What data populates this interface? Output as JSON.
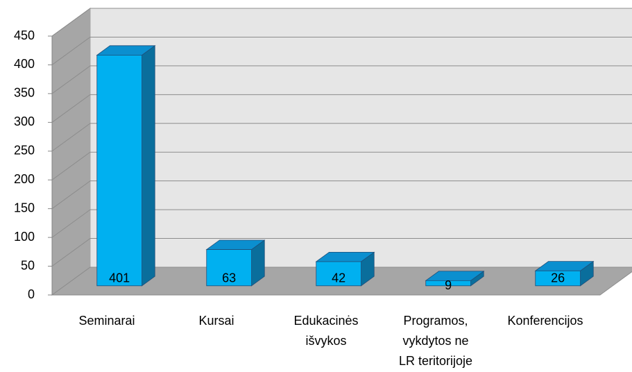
{
  "chart_data": {
    "type": "bar3d",
    "categories": [
      "Seminarai",
      "Kursai",
      "Edukacinės išvykos",
      "Programos, vykdytos ne LR teritorijoje",
      "Konferencijos"
    ],
    "values": [
      401,
      63,
      42,
      9,
      26
    ],
    "color": "#00b0f0",
    "ylim": [
      0,
      450
    ],
    "yticks": [
      0,
      50,
      100,
      150,
      200,
      250,
      300,
      350,
      400,
      450
    ],
    "grid": true
  }
}
